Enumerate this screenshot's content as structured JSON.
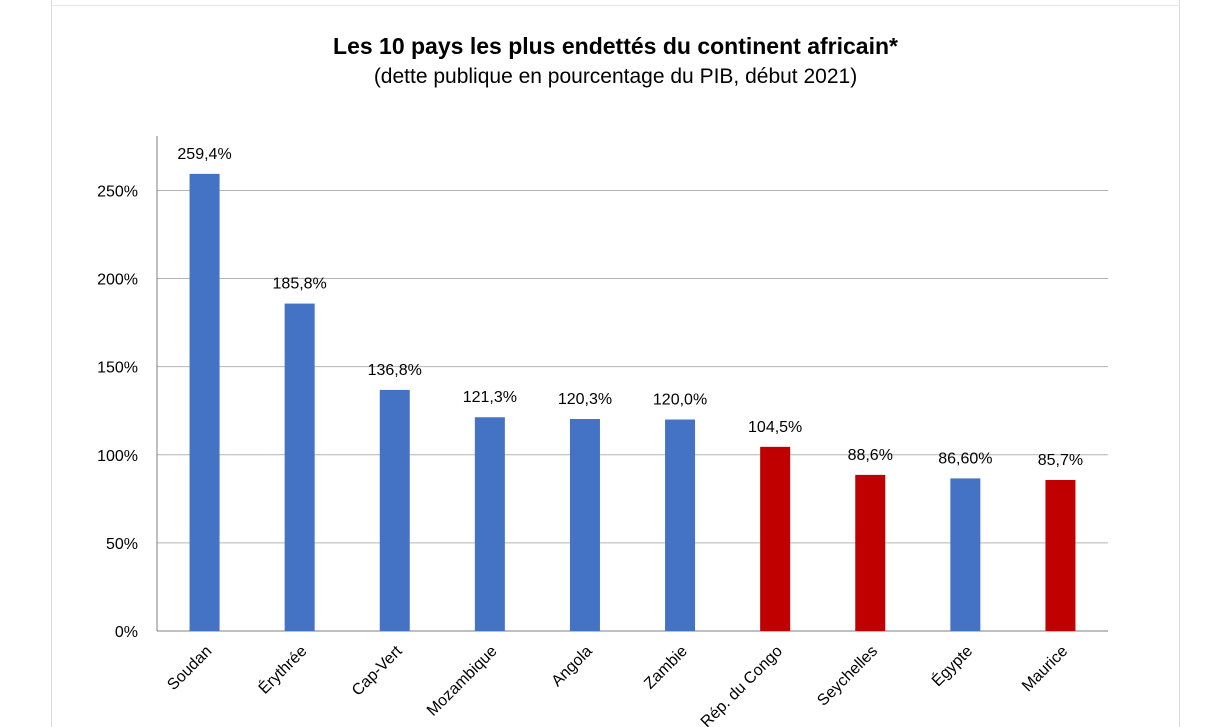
{
  "chart_data": {
    "type": "bar",
    "title": "Les 10 pays les plus endettés du continent africain*",
    "subtitle": "(dette publique en pourcentage du PIB, début 2021)",
    "xlabel": "",
    "ylabel": "",
    "ylim": [
      0,
      280
    ],
    "yticks": [
      0,
      50,
      100,
      150,
      200,
      250
    ],
    "ytick_labels": [
      "0%",
      "50%",
      "100%",
      "150%",
      "200%",
      "250%"
    ],
    "grid": true,
    "categories": [
      "Soudan",
      "Érythrée",
      "Cap-Vert",
      "Mozambique",
      "Angola",
      "Zambie",
      "Rép. du Congo",
      "Seychelles",
      "Égypte",
      "Maurice"
    ],
    "values": [
      259.4,
      185.8,
      136.8,
      121.3,
      120.3,
      120.0,
      104.5,
      88.6,
      86.6,
      85.7
    ],
    "data_labels": [
      "259,4%",
      "185,8%",
      "136,8%",
      "121,3%",
      "120,3%",
      "120,0%",
      "104,5%",
      "88,6%",
      "86,60%",
      "85,7%"
    ],
    "bar_colors": [
      "#4472c4",
      "#4472c4",
      "#4472c4",
      "#4472c4",
      "#4472c4",
      "#4472c4",
      "#c00000",
      "#c00000",
      "#4472c4",
      "#c00000"
    ]
  },
  "colors": {
    "blue": "#4472c4",
    "red": "#c00000",
    "grid": "#b4b4b4",
    "axis": "#7f7f7f"
  }
}
